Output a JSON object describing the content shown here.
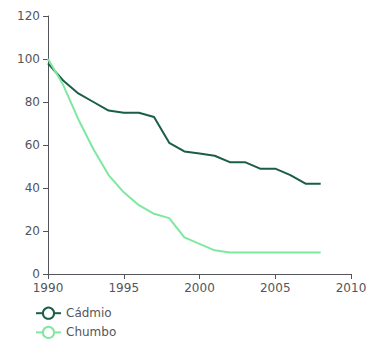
{
  "chart_data": {
    "type": "line",
    "x": [
      1990,
      1991,
      1992,
      1993,
      1994,
      1995,
      1996,
      1997,
      1998,
      1999,
      2000,
      2001,
      2002,
      2003,
      2004,
      2005,
      2006,
      2007,
      2008
    ],
    "series": [
      {
        "name": "Cádmio",
        "color": "#1a5e45",
        "values": [
          98,
          90,
          84,
          80,
          76,
          75,
          75,
          73,
          61,
          57,
          56,
          55,
          52,
          52,
          49,
          49,
          46,
          42,
          42
        ]
      },
      {
        "name": "Chumbo",
        "color": "#7fe8a0",
        "values": [
          100,
          88,
          72,
          58,
          46,
          38,
          32,
          28,
          26,
          17,
          14,
          11,
          10,
          10,
          10,
          10,
          10,
          10,
          10
        ]
      }
    ],
    "xlim": [
      1990,
      2010
    ],
    "xticks": [
      1990,
      1995,
      2000,
      2005,
      2010
    ],
    "ylim": [
      0,
      120
    ],
    "yticks": [
      0,
      20,
      40,
      60,
      80,
      100,
      120
    ],
    "grid": false,
    "legend": "bottom"
  }
}
